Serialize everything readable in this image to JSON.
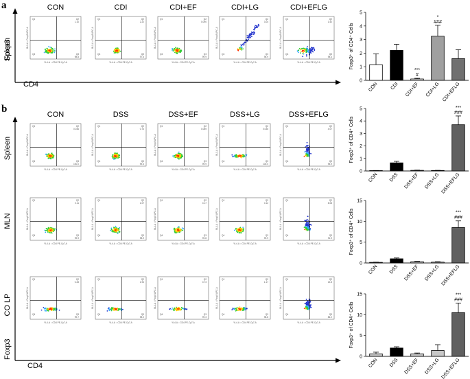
{
  "figure": {
    "panel_a_letter": "a",
    "panel_b_letter": "b",
    "row_a_label": "Spleen",
    "row_b_labels": [
      "Spleen",
      "MLN",
      "CO LP"
    ],
    "y_axis_marker": "Foxp3",
    "x_axis_marker": "CD4",
    "flow_axis_x": "YL4-A :: CD4 PE-Cy7-A",
    "flow_axis_y": "BL1-A :: Foxp3 APC-A",
    "quadrant_names": [
      "Q1",
      "Q2",
      "Q3",
      "Q4"
    ],
    "colors": {
      "bar_outline": "#000000",
      "plot_frame": "#222222"
    }
  },
  "flow_panels": [
    {
      "id": "a-spleen",
      "columns": [
        "CON",
        "CDI",
        "CDI+EF",
        "CDI+LG",
        "CDI+EFLG"
      ],
      "q2": [
        "1.10",
        "2.22",
        "0.090",
        "3.04",
        "1.52"
      ],
      "q4": [
        "98.8",
        "97.6",
        "99.9",
        "96.9",
        "98.4"
      ]
    },
    {
      "id": "b-spleen",
      "columns": [
        "CON",
        "DSS",
        "DSS+EF",
        "DSS+LG",
        "DSS+EFLG"
      ],
      "q2": [
        "0.036",
        "0.73",
        "0.089",
        "0.035",
        "4.07"
      ],
      "q4": [
        "100.0",
        "99.3",
        "99.9",
        "100.0",
        "95.9"
      ]
    },
    {
      "id": "b-mln",
      "columns": [
        "CON",
        "DSS",
        "DSS+EF",
        "DSS+LG",
        "DSS+EFLG"
      ],
      "q2": [
        "0.11",
        "1.07",
        "0.17",
        "0.12",
        "8.08"
      ],
      "q4": [
        "99.9",
        "98.9",
        "99.8",
        "99.9",
        "91.9"
      ]
    },
    {
      "id": "b-colp",
      "columns": [
        "CON",
        "DSS",
        "DSS+EF",
        "DSS+LG",
        "DSS+EFLG"
      ],
      "q2": [
        "0.28",
        "1.94",
        "0.73",
        "1.17",
        "13.8"
      ],
      "q4": [
        "99.7",
        "98.0",
        "99.3",
        "98.8",
        "86.2"
      ]
    }
  ],
  "chart_data": [
    {
      "type": "bar",
      "panel": "a-spleen",
      "categories": [
        "CON",
        "CDI",
        "CDI+EF",
        "CDI+LG",
        "CDI+EFLG"
      ],
      "values": [
        1.15,
        2.2,
        0.1,
        3.25,
        1.6
      ],
      "errors": [
        0.8,
        0.45,
        0.05,
        0.8,
        0.65
      ],
      "fills": [
        "#ffffff",
        "#000000",
        "#ffffff",
        "#a0a0a0",
        "#707070"
      ],
      "ylabel": "Foxp3⁺ of CD4⁺ Cells",
      "ylim": [
        0,
        5
      ],
      "yticks": [
        0,
        1,
        2,
        3,
        4,
        5
      ],
      "annotations": [
        {
          "index": 2,
          "lines": [
            "***",
            "#"
          ]
        },
        {
          "index": 3,
          "lines": [
            "*",
            "###"
          ]
        }
      ]
    },
    {
      "type": "bar",
      "panel": "b-spleen",
      "categories": [
        "CON",
        "DSS",
        "DSS+EF",
        "DSS+LG",
        "DSS+EFLG"
      ],
      "values": [
        0.03,
        0.65,
        0.05,
        0.04,
        3.7
      ],
      "errors": [
        0.01,
        0.12,
        0.02,
        0.01,
        0.7
      ],
      "fills": [
        "#c8c8c8",
        "#000000",
        "#c8c8c8",
        "#c8c8c8",
        "#606060"
      ],
      "ylabel": "Foxp3⁺ of CD4⁺ Cells",
      "ylim": [
        0,
        5
      ],
      "yticks": [
        0,
        1,
        2,
        3,
        4,
        5
      ],
      "annotations": [
        {
          "index": 4,
          "lines": [
            "***",
            "###"
          ]
        }
      ]
    },
    {
      "type": "bar",
      "panel": "b-mln",
      "categories": [
        "CON",
        "DSS",
        "DSS+EF",
        "DSS+LG",
        "DSS+EFLG"
      ],
      "values": [
        0.15,
        1.0,
        0.3,
        0.2,
        8.5
      ],
      "errors": [
        0.05,
        0.2,
        0.1,
        0.1,
        1.6
      ],
      "fills": [
        "#c8c8c8",
        "#000000",
        "#c8c8c8",
        "#c8c8c8",
        "#606060"
      ],
      "ylabel": "Foxp3⁺ of CD4⁺ Cells",
      "ylim": [
        0,
        15
      ],
      "yticks": [
        0,
        5,
        10,
        15
      ],
      "annotations": [
        {
          "index": 4,
          "lines": [
            "***",
            "###"
          ]
        }
      ]
    },
    {
      "type": "bar",
      "panel": "b-colp",
      "categories": [
        "CON",
        "DSS",
        "DSS+EF",
        "DSS+LG",
        "DSS+EFLG"
      ],
      "values": [
        0.6,
        2.0,
        0.6,
        1.4,
        10.5
      ],
      "errors": [
        0.4,
        0.3,
        0.2,
        1.4,
        2.3
      ],
      "fills": [
        "#c8c8c8",
        "#000000",
        "#c8c8c8",
        "#c8c8c8",
        "#606060"
      ],
      "ylabel": "Foxp3⁺ of CD4⁺ Cells",
      "ylim": [
        0,
        15
      ],
      "yticks": [
        0,
        5,
        10,
        15
      ],
      "annotations": [
        {
          "index": 4,
          "lines": [
            "***",
            "###"
          ]
        }
      ]
    }
  ]
}
